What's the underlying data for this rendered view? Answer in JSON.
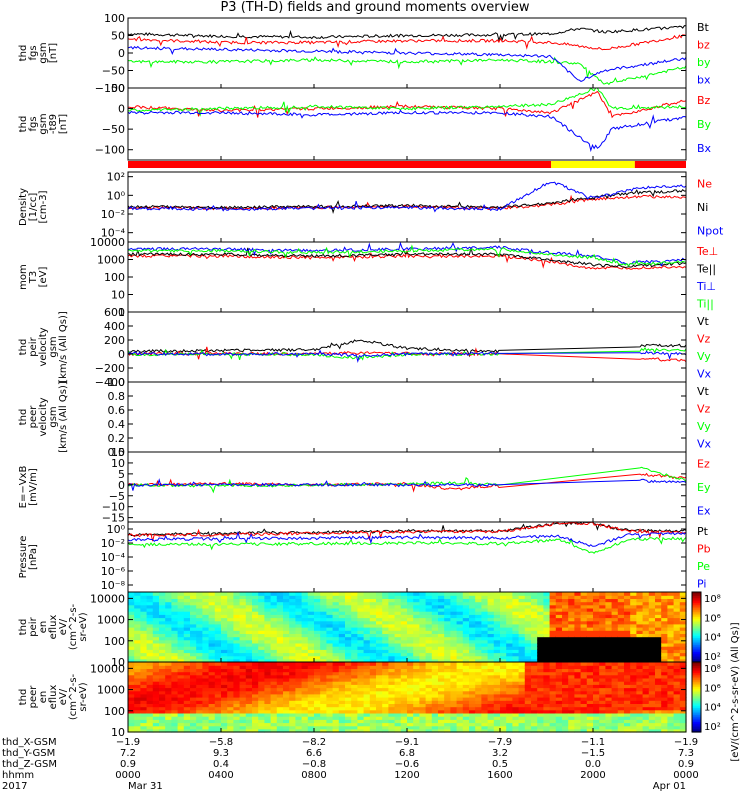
{
  "title": "P3 (TH-D) fields and ground moments overview",
  "colors": {
    "black": "#000000",
    "red": "#ff0000",
    "green": "#00ff00",
    "blue": "#0000ff",
    "yellow": "#ffff00",
    "magenta": "#d000d0"
  },
  "chart_data": [
    {
      "type": "line",
      "id": "fgs",
      "ylabel": [
        "thd",
        "fgs",
        "gsm",
        "[nT]"
      ],
      "ylim": [
        -100,
        100
      ],
      "scale": "linear",
      "yticks": [
        "100",
        "50",
        "0",
        "−50",
        "−100"
      ],
      "yticks_values": [
        100,
        50,
        0,
        -50,
        -100
      ],
      "series": [
        {
          "name": "Bt",
          "color": "#000000",
          "x": [
            0,
            4,
            8,
            12,
            16,
            18.2,
            19.4,
            20.5,
            24
          ],
          "y": [
            55,
            48,
            45,
            50,
            52,
            55,
            70,
            60,
            75
          ]
        },
        {
          "name": "bz",
          "color": "#ff0000",
          "x": [
            0,
            4,
            8,
            12,
            16,
            18.2,
            19.4,
            20.5,
            24
          ],
          "y": [
            40,
            30,
            30,
            35,
            35,
            30,
            20,
            10,
            50
          ]
        },
        {
          "name": "by",
          "color": "#00ff00",
          "x": [
            0,
            4,
            8,
            12,
            16,
            18.2,
            19.4,
            20.5,
            24
          ],
          "y": [
            -25,
            -25,
            -20,
            -25,
            -20,
            -25,
            -30,
            -90,
            -40
          ]
        },
        {
          "name": "bx",
          "color": "#0000ff",
          "x": [
            0,
            4,
            8,
            12,
            16,
            18.2,
            19.4,
            20.5,
            24
          ],
          "y": [
            15,
            10,
            5,
            0,
            -5,
            -10,
            -80,
            -50,
            -15
          ]
        }
      ]
    },
    {
      "type": "line",
      "id": "fgs-t89",
      "ylabel": [
        "thd",
        "fgs",
        "gsm",
        "-t89",
        "[nT]"
      ],
      "ylim": [
        -125,
        50
      ],
      "scale": "linear",
      "yticks": [
        "50",
        "0",
        "−50",
        "−100"
      ],
      "yticks_values": [
        50,
        0,
        -50,
        -100
      ],
      "series": [
        {
          "name": "Bz",
          "color": "#ff0000",
          "x": [
            0,
            4,
            8,
            12,
            16,
            18.2,
            20.2,
            20.8,
            24
          ],
          "y": [
            5,
            -5,
            0,
            5,
            0,
            -10,
            40,
            -20,
            20
          ]
        },
        {
          "name": "By",
          "color": "#00ff00",
          "x": [
            0,
            4,
            8,
            12,
            16,
            18.2,
            20.2,
            20.8,
            24
          ],
          "y": [
            -5,
            0,
            5,
            0,
            5,
            10,
            50,
            0,
            5
          ]
        },
        {
          "name": "Bx",
          "color": "#0000ff",
          "x": [
            0,
            4,
            8,
            12,
            16,
            18.2,
            20.2,
            20.8,
            24
          ],
          "y": [
            -10,
            -10,
            -15,
            -10,
            -10,
            -20,
            -100,
            -50,
            -20
          ]
        }
      ]
    },
    {
      "type": "line",
      "id": "density",
      "ylabel": [
        "Density",
        "[1/cc]",
        "[cm-3]"
      ],
      "ylim": [
        -5,
        2.5
      ],
      "scale": "log",
      "yticks": [
        "10²",
        "10⁰",
        "10⁻²",
        "10⁻⁴"
      ],
      "yticks_values": [
        2,
        0,
        -2,
        -4
      ],
      "series": [
        {
          "name": "Ne",
          "color": "#ff0000",
          "x": [
            0,
            4,
            8,
            12,
            16,
            18.2,
            20,
            22,
            24
          ],
          "y": [
            -1.3,
            -1.4,
            -1.3,
            -1.2,
            -1.4,
            -1.0,
            -0.4,
            -0.1,
            -0.2
          ]
        },
        {
          "name": "Ni",
          "color": "#000000",
          "x": [
            0,
            4,
            8,
            12,
            16,
            18.2,
            20,
            22,
            24
          ],
          "y": [
            -1.2,
            -1.3,
            -1.2,
            -1.1,
            -1.3,
            -0.8,
            -0.2,
            0.3,
            0.5
          ]
        },
        {
          "name": "Npot",
          "color": "#0000ff",
          "x": [
            0,
            4,
            8,
            12,
            16,
            18.2,
            20,
            22,
            24
          ],
          "y": [
            -1.4,
            -1.5,
            -1.4,
            -1.3,
            -1.5,
            1.5,
            -0.3,
            0.8,
            1.0
          ]
        }
      ]
    },
    {
      "type": "line",
      "id": "temperature",
      "ylabel": [
        "mom",
        "T3",
        "[eV]"
      ],
      "ylim": [
        0,
        4
      ],
      "scale": "log",
      "yticks": [
        "10000",
        "1000",
        "100",
        "10",
        "1"
      ],
      "yticks_values": [
        4,
        3,
        2,
        1,
        0
      ],
      "series": [
        {
          "name": "Te⊥",
          "color": "#ff0000",
          "x": [
            0,
            4,
            8,
            12,
            16,
            18,
            20,
            21.5,
            24
          ],
          "y": [
            3.2,
            3.2,
            3.1,
            3.2,
            3.2,
            2.9,
            2.5,
            2.5,
            2.6
          ]
        },
        {
          "name": "Te||",
          "color": "#000000",
          "x": [
            0,
            4,
            8,
            12,
            16,
            18,
            20,
            21.5,
            24
          ],
          "y": [
            3.3,
            3.3,
            3.2,
            3.3,
            3.3,
            3.0,
            2.7,
            2.6,
            2.8
          ]
        },
        {
          "name": "Ti⊥",
          "color": "#0000ff",
          "x": [
            0,
            4,
            8,
            12,
            16,
            18,
            20,
            21.5,
            24
          ],
          "y": [
            3.6,
            3.6,
            3.5,
            3.6,
            3.7,
            3.4,
            3.2,
            2.8,
            3.0
          ]
        },
        {
          "name": "Ti||",
          "color": "#00ff00",
          "x": [
            0,
            4,
            8,
            12,
            16,
            18,
            20,
            21.5,
            24
          ],
          "y": [
            3.5,
            3.5,
            3.4,
            3.5,
            3.6,
            3.3,
            3.1,
            2.7,
            2.9
          ]
        }
      ]
    },
    {
      "type": "line",
      "id": "peir-velocity",
      "ylabel": [
        "thd",
        "peir",
        "velocity",
        "gsm",
        "[km/s (All Qs)]"
      ],
      "ylim": [
        -400,
        600
      ],
      "scale": "linear",
      "yticks": [
        "600",
        "400",
        "200",
        "0",
        "−200",
        "−400"
      ],
      "yticks_values": [
        600,
        400,
        200,
        0,
        -200,
        -400
      ],
      "series": [
        {
          "name": "Vt",
          "color": "#000000",
          "x": [
            0,
            4,
            8,
            10,
            12,
            16,
            22,
            24
          ],
          "y": [
            40,
            50,
            60,
            200,
            80,
            40,
            120,
            120
          ]
        },
        {
          "name": "Vz",
          "color": "#ff0000",
          "x": [
            0,
            4,
            8,
            10,
            12,
            16,
            22,
            24
          ],
          "y": [
            0,
            5,
            0,
            20,
            5,
            0,
            -60,
            -100
          ]
        },
        {
          "name": "Vy",
          "color": "#00ff00",
          "x": [
            0,
            4,
            8,
            10,
            12,
            16,
            22,
            24
          ],
          "y": [
            -5,
            0,
            -10,
            -60,
            -5,
            0,
            60,
            60
          ]
        },
        {
          "name": "Vx",
          "color": "#0000ff",
          "x": [
            0,
            4,
            8,
            10,
            12,
            16,
            22,
            24
          ],
          "y": [
            5,
            -5,
            5,
            -20,
            0,
            5,
            20,
            0
          ]
        }
      ]
    },
    {
      "type": "line",
      "id": "peer-velocity",
      "ylabel": [
        "thd",
        "peer",
        "velocity",
        "gsm",
        "[km/s (All Qs)]"
      ],
      "ylim": [
        0,
        1
      ],
      "scale": "linear",
      "yticks": [
        "1.0",
        "0.8",
        "0.6",
        "0.4",
        "0.2",
        "0.0"
      ],
      "yticks_values": [
        1.0,
        0.8,
        0.6,
        0.4,
        0.2,
        0.0
      ],
      "series": [
        {
          "name": "Vt",
          "color": "#000000",
          "x": [],
          "y": []
        },
        {
          "name": "Vz",
          "color": "#ff0000",
          "x": [],
          "y": []
        },
        {
          "name": "Vy",
          "color": "#00ff00",
          "x": [],
          "y": []
        },
        {
          "name": "Vx",
          "color": "#0000ff",
          "x": [],
          "y": []
        }
      ]
    },
    {
      "type": "line",
      "id": "efield",
      "ylabel": [
        "E=−VxB",
        "[mV/m]"
      ],
      "ylim": [
        -17,
        15
      ],
      "scale": "linear",
      "yticks": [
        "15",
        "10",
        "5",
        "0",
        "−5",
        "−10",
        "−15"
      ],
      "yticks_values": [
        15,
        10,
        5,
        0,
        -5,
        -10,
        -15
      ],
      "series": [
        {
          "name": "Ez",
          "color": "#ff0000",
          "x": [
            0,
            4,
            8,
            12,
            14,
            16,
            22,
            24
          ],
          "y": [
            0,
            0.5,
            0,
            0.5,
            -2,
            0,
            5,
            3
          ]
        },
        {
          "name": "Ey",
          "color": "#00ff00",
          "x": [
            0,
            4,
            8,
            12,
            14,
            16,
            22,
            24
          ],
          "y": [
            0,
            -0.5,
            0,
            0.3,
            1,
            0,
            8,
            2
          ]
        },
        {
          "name": "Ex",
          "color": "#0000ff",
          "x": [
            0,
            4,
            8,
            12,
            14,
            16,
            22,
            24
          ],
          "y": [
            0,
            0,
            0,
            0,
            0,
            0,
            2,
            1
          ]
        }
      ]
    },
    {
      "type": "line",
      "id": "pressure",
      "ylabel": [
        "Pressure",
        "[nPa]"
      ],
      "ylim": [
        -9,
        1
      ],
      "scale": "log",
      "yticks": [
        "10⁰",
        "10⁻²",
        "10⁻⁴",
        "10⁻⁶",
        "10⁻⁸"
      ],
      "yticks_values": [
        0,
        -2,
        -4,
        -6,
        -8
      ],
      "series": [
        {
          "name": "Pt",
          "color": "#000000",
          "x": [
            0,
            4,
            8,
            12,
            16,
            18.5,
            20,
            21.5,
            24
          ],
          "y": [
            -0.8,
            -0.6,
            -0.5,
            -0.3,
            -0.3,
            0.8,
            0.8,
            -0.2,
            -0.3
          ]
        },
        {
          "name": "Pb",
          "color": "#ff0000",
          "x": [
            0,
            4,
            8,
            12,
            16,
            18.5,
            20,
            21.5,
            24
          ],
          "y": [
            -0.9,
            -0.8,
            -0.6,
            -0.4,
            -0.4,
            0.8,
            0.8,
            -0.3,
            -0.5
          ]
        },
        {
          "name": "Pe",
          "color": "#00ff00",
          "x": [
            0,
            4,
            8,
            12,
            16,
            18.5,
            20,
            21.5,
            24
          ],
          "y": [
            -2.2,
            -2.2,
            -2.1,
            -2.0,
            -2.1,
            -1.5,
            -3.5,
            -1.5,
            -1.3
          ]
        },
        {
          "name": "Pi",
          "color": "#0000ff",
          "x": [
            0,
            4,
            8,
            12,
            16,
            18.5,
            20,
            21.5,
            24
          ],
          "y": [
            -1.5,
            -1.4,
            -1.3,
            -1.2,
            -1.3,
            -1.0,
            -2.5,
            -0.8,
            -0.6
          ]
        }
      ]
    },
    {
      "type": "heatmap",
      "id": "peir-en-eflux",
      "ylabel": [
        "thd",
        "peir",
        "en",
        "eflux",
        "eV/",
        "(cm^2-s-",
        "sr-eV)"
      ],
      "ylim": [
        1,
        4.3
      ],
      "scale": "log",
      "yticks": [
        "10000",
        "1000",
        "100",
        "10"
      ],
      "yticks_values": [
        4,
        3,
        2,
        1
      ]
    },
    {
      "type": "heatmap",
      "id": "peer-en-eflux",
      "ylabel": [
        "thd",
        "peer",
        "en",
        "eflux",
        "eV/",
        "(cm^2-s-",
        "sr-eV)"
      ],
      "ylim": [
        1,
        4.3
      ],
      "scale": "log",
      "yticks": [
        "10000",
        "1000",
        "100",
        "10"
      ],
      "yticks_values": [
        4,
        3,
        2,
        1
      ]
    }
  ],
  "colorbar": {
    "label": "[eV/(cm^2-s-sr-eV) (All Qs)]",
    "ticks": [
      "10⁸",
      "10⁶",
      "10⁴",
      "10²"
    ]
  },
  "colorbar2": {
    "ticks": [
      "10⁸",
      "10⁶",
      "10⁴",
      "10²"
    ]
  },
  "xaxis": {
    "rows": [
      {
        "label": "thd_X-GSM",
        "values": [
          "−1.9",
          "−5.8",
          "−8.2",
          "−9.1",
          "−7.9",
          "−1.1",
          "−1.9"
        ]
      },
      {
        "label": "thd_Y-GSM",
        "values": [
          "7.2",
          "9.3",
          "6.6",
          "6.8",
          "3.2",
          "−1.5",
          "7.3"
        ]
      },
      {
        "label": "thd_Z-GSM",
        "values": [
          "0.9",
          "0.4",
          "−0.8",
          "−0.6",
          "0.5",
          "0.0",
          "0.9"
        ]
      },
      {
        "label": "hhmm",
        "values": [
          "0000",
          "0400",
          "0800",
          "1200",
          "1600",
          "2000",
          "0000"
        ]
      },
      {
        "label": "2017",
        "values": [
          "Mar 31",
          "",
          "",
          "",
          "",
          "",
          "Apr 01"
        ]
      }
    ]
  }
}
